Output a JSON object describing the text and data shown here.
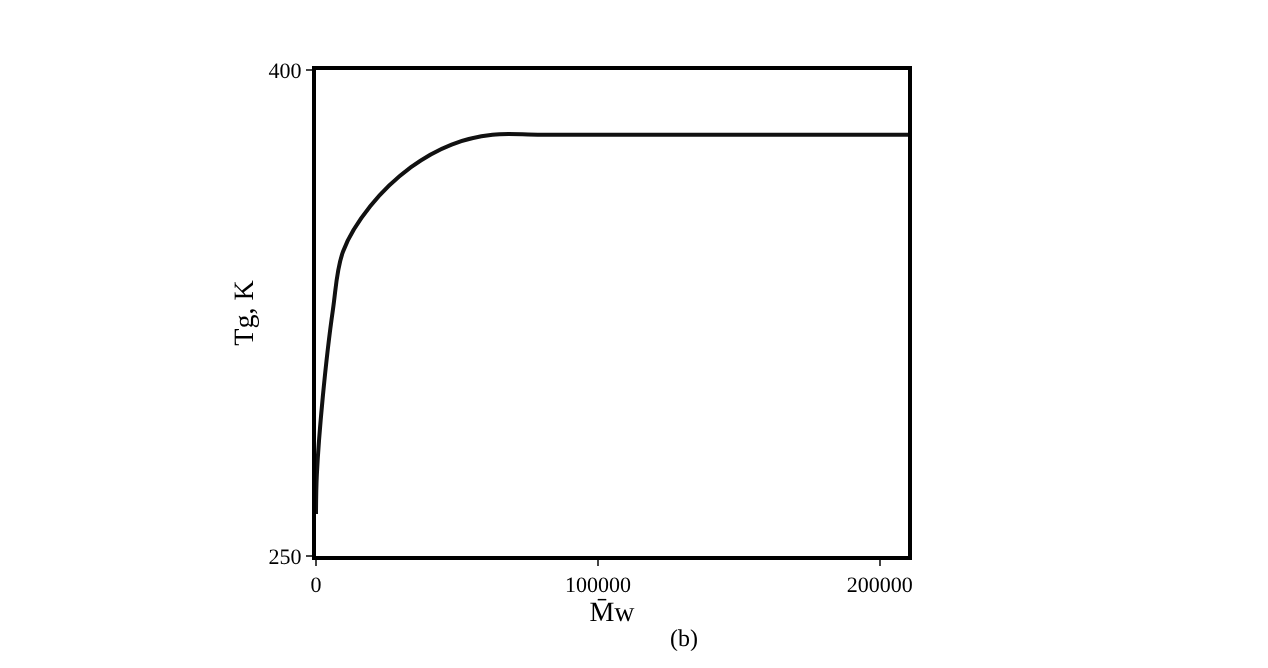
{
  "chart_data": {
    "type": "line",
    "xlabel": "M̄w",
    "ylabel": "Tg, K",
    "annotations": [
      "(b)"
    ],
    "x": [
      0,
      300,
      2400,
      6000,
      9600,
      19300,
      33700,
      48100,
      62600,
      80000,
      120000,
      160000,
      210000
    ],
    "series": [
      {
        "color": "#111111",
        "values": [
          263,
          275,
          299,
          326,
          344,
          358,
          370,
          377,
          380,
          380,
          380,
          380,
          380
        ]
      }
    ],
    "xlim": [
      0,
      210000
    ],
    "ylim": [
      250,
      400
    ],
    "xticks": [
      0,
      100000,
      200000
    ],
    "yticks": [
      250,
      400
    ],
    "grid": false,
    "marker": "none",
    "line_style": "solid"
  }
}
